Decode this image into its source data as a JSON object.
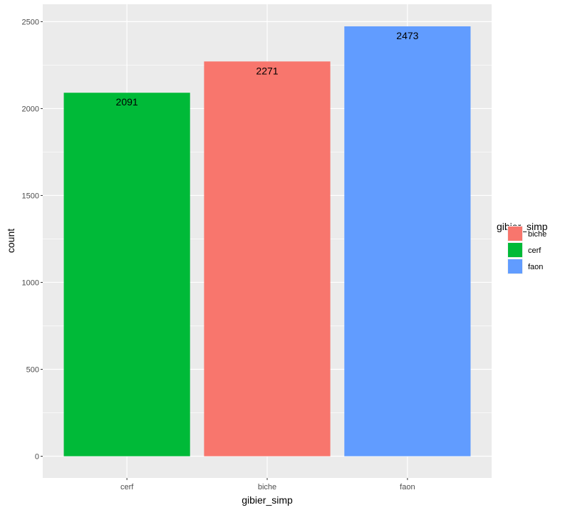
{
  "chart_data": {
    "type": "bar",
    "categories": [
      "cerf",
      "biche",
      "faon"
    ],
    "values": [
      2091,
      2271,
      2473
    ],
    "data_labels": [
      "2091",
      "2271",
      "2473"
    ],
    "colors": [
      "#00BA38",
      "#F8766D",
      "#619CFF"
    ],
    "xlabel": "gibier_simp",
    "ylabel": "count",
    "ylim": [
      -125,
      2600
    ],
    "yticks": [
      0,
      500,
      1000,
      1500,
      2000,
      2500
    ],
    "ytick_labels": [
      "0",
      "500",
      "1000",
      "1500",
      "2000",
      "2500"
    ],
    "grid": true,
    "panel_background": "#EBEBEB",
    "legend": {
      "title": "gibier_simp",
      "position": "right",
      "entries": [
        {
          "label": "biche",
          "color": "#F8766D"
        },
        {
          "label": "cerf",
          "color": "#00BA38"
        },
        {
          "label": "faon",
          "color": "#619CFF"
        }
      ]
    }
  }
}
